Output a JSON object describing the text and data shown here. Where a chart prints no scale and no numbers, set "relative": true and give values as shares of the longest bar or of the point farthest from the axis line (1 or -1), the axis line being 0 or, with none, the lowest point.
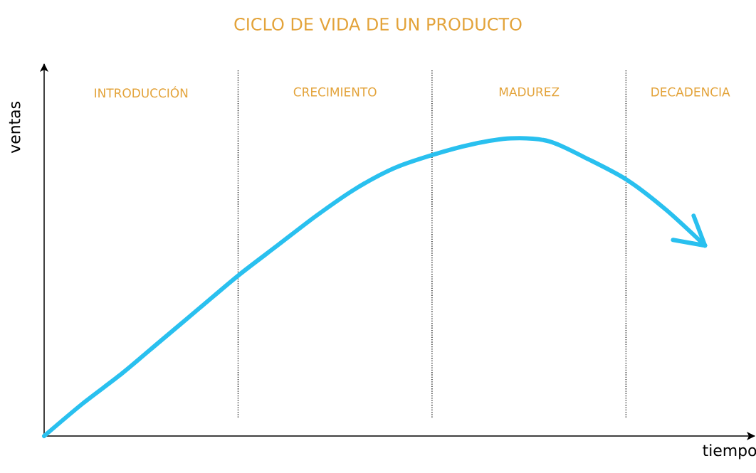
{
  "chart_data": {
    "type": "line",
    "title": "CICLO DE VIDA DE UN PRODUCTO",
    "xlabel": "tiempo",
    "ylabel": "ventas",
    "relative": true,
    "grid": "x",
    "categories": [
      null,
      null,
      null,
      null,
      null,
      null,
      null,
      null,
      null,
      null,
      null,
      null,
      null,
      null,
      null,
      null,
      null,
      null
    ],
    "series": [
      {
        "color": "#29c0ef",
        "values": [
          0,
          0.11,
          0.21,
          0.32,
          0.43,
          0.54,
          0.64,
          0.74,
          0.83,
          0.9,
          0.945,
          0.98,
          1.0,
          0.99,
          0.93,
          0.86,
          0.76,
          0.64
        ]
      }
    ],
    "annotations": [
      "INTRODUCCIÓN",
      "CRECIMIENTO",
      "MADUREZ",
      "DECADENCIA"
    ]
  }
}
